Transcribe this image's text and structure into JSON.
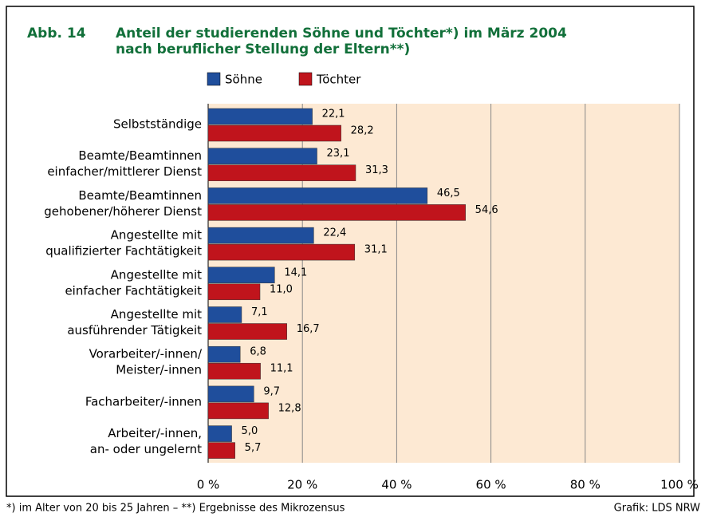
{
  "chart_data": {
    "type": "hbar",
    "figure_label": "Abb. 14",
    "title": [
      "Anteil der studierenden Söhne und Töchter*) im März 2004",
      "nach beruflicher Stellung der Eltern**)"
    ],
    "categories": [
      [
        "Selbstständige"
      ],
      [
        "Beamte/Beamtinnen",
        "einfacher/mittlerer Dienst"
      ],
      [
        "Beamte/Beamtinnen",
        "gehobener/höherer Dienst"
      ],
      [
        "Angestellte mit",
        "qualifizierter Fachtätigkeit"
      ],
      [
        "Angestellte mit",
        "einfacher Fachtätigkeit"
      ],
      [
        "Angestellte mit",
        "ausführender Tätigkeit"
      ],
      [
        "Vorarbeiter/-innen/",
        "Meister/-innen"
      ],
      [
        "Facharbeiter/-innen"
      ],
      [
        "Arbeiter/-innen,",
        "an- oder ungelernt"
      ]
    ],
    "series": [
      {
        "name": "Söhne",
        "color": "#1f4e9c",
        "values": [
          22.1,
          23.1,
          46.5,
          22.4,
          14.1,
          7.1,
          6.8,
          9.7,
          5.0
        ],
        "value_labels": [
          "22,1",
          "23,1",
          "46,5",
          "22,4",
          "14,1",
          "7,1",
          "6,8",
          "9,7",
          "5,0"
        ]
      },
      {
        "name": "Töchter",
        "color": "#c0141c",
        "values": [
          28.2,
          31.3,
          54.6,
          31.1,
          11.0,
          16.7,
          11.1,
          12.8,
          5.7
        ],
        "value_labels": [
          "28,2",
          "31,3",
          "54,6",
          "31,1",
          "11,0",
          "16,7",
          "11,1",
          "12,8",
          "5,7"
        ]
      }
    ],
    "xlim": [
      0,
      100
    ],
    "xticks": [
      {
        "value": 0,
        "label": "0 %"
      },
      {
        "value": 20,
        "label": "20 %"
      },
      {
        "value": 40,
        "label": "40 %"
      },
      {
        "value": 60,
        "label": "60 %"
      },
      {
        "value": 80,
        "label": "80 %"
      },
      {
        "value": 100,
        "label": "100 %"
      }
    ],
    "grid": true,
    "plot_background": "#fde9d3",
    "footnote": "*) im Alter von 20 bis 25 Jahren – **) Ergebnisse des Mikrozensus",
    "source": "Grafik: LDS NRW"
  }
}
